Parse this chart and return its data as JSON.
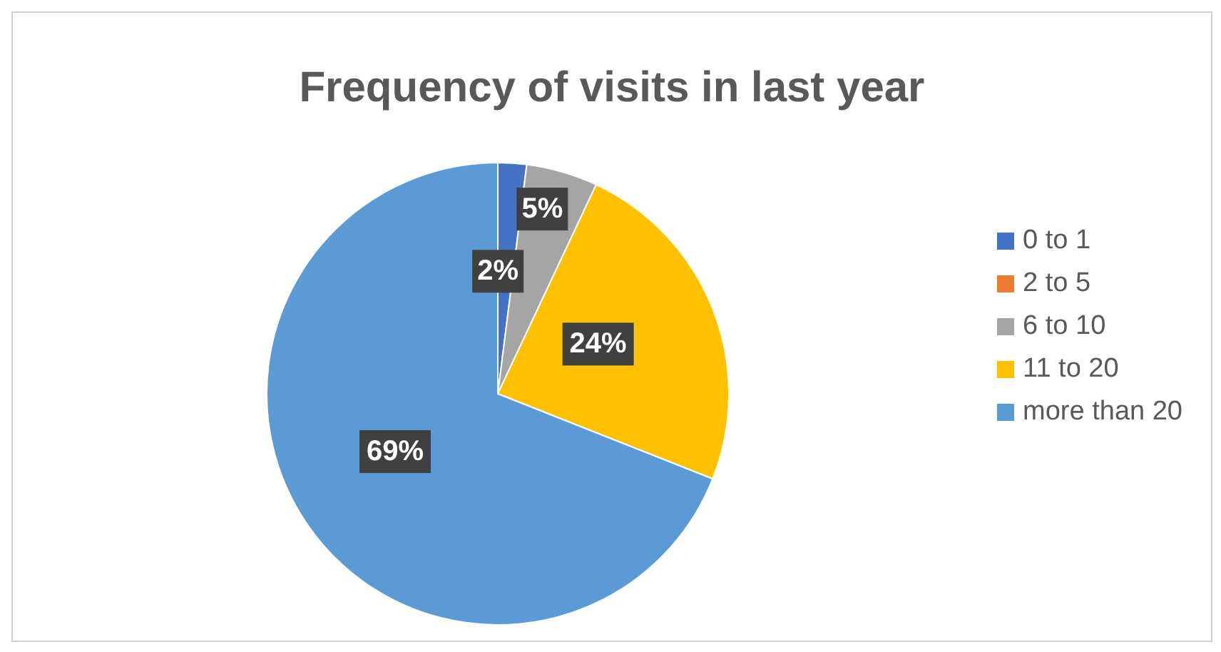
{
  "chart_data": {
    "type": "pie",
    "title": "Frequency of visits in last year",
    "categories": [
      "0 to 1",
      "2 to 5",
      "6 to 10",
      "11 to 20",
      "more than 20"
    ],
    "values": [
      2,
      0,
      5,
      24,
      69
    ],
    "colors": [
      "#4472c4",
      "#ed7d31",
      "#a5a5a5",
      "#ffc000",
      "#5b9bd5"
    ],
    "value_labels": [
      "2%",
      null,
      "5%",
      "24%",
      "69%"
    ],
    "legend": "right"
  }
}
